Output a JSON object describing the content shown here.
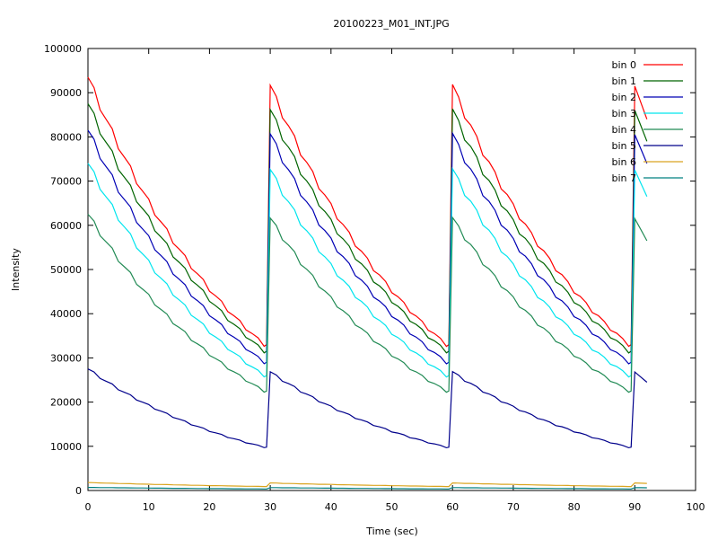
{
  "chart_data": {
    "type": "line",
    "title": "20100223_M01_INT.JPG",
    "xlabel": "Time (sec)",
    "ylabel": "Intensity",
    "xlim": [
      0,
      100
    ],
    "ylim": [
      0,
      100000
    ],
    "xticks": [
      0,
      10,
      20,
      30,
      40,
      50,
      60,
      70,
      80,
      90,
      100
    ],
    "yticks": [
      0,
      10000,
      20000,
      30000,
      40000,
      50000,
      60000,
      70000,
      80000,
      90000,
      100000
    ],
    "grid": false,
    "legend_position": "top-right",
    "series": [
      {
        "name": "bin 0",
        "color": "#ff0000",
        "peak": 93500,
        "end": 33000,
        "repeat_peak": 91500,
        "last": 84000
      },
      {
        "name": "bin 1",
        "color": "#006400",
        "peak": 87500,
        "end": 31500,
        "repeat_peak": 86000,
        "last": 79000
      },
      {
        "name": "bin 2",
        "color": "#0000b4",
        "peak": 81500,
        "end": 29000,
        "repeat_peak": 80500,
        "last": 74000
      },
      {
        "name": "bin 3",
        "color": "#00e5ee",
        "peak": 74000,
        "end": 26000,
        "repeat_peak": 72500,
        "last": 66500
      },
      {
        "name": "bin 4",
        "color": "#228b55",
        "peak": 62500,
        "end": 22500,
        "repeat_peak": 61500,
        "last": 56500
      },
      {
        "name": "bin 5",
        "color": "#00008b",
        "peak": 27500,
        "end": 9800,
        "repeat_peak": 26800,
        "last": 24500
      },
      {
        "name": "bin 6",
        "color": "#daa520",
        "peak": 1800,
        "end": 900,
        "repeat_peak": 1700,
        "last": 1600
      },
      {
        "name": "bin 7",
        "color": "#008080",
        "peak": 700,
        "end": 350,
        "repeat_peak": 650,
        "last": 600
      }
    ],
    "period_sec": 30,
    "x_max_data": 92
  }
}
